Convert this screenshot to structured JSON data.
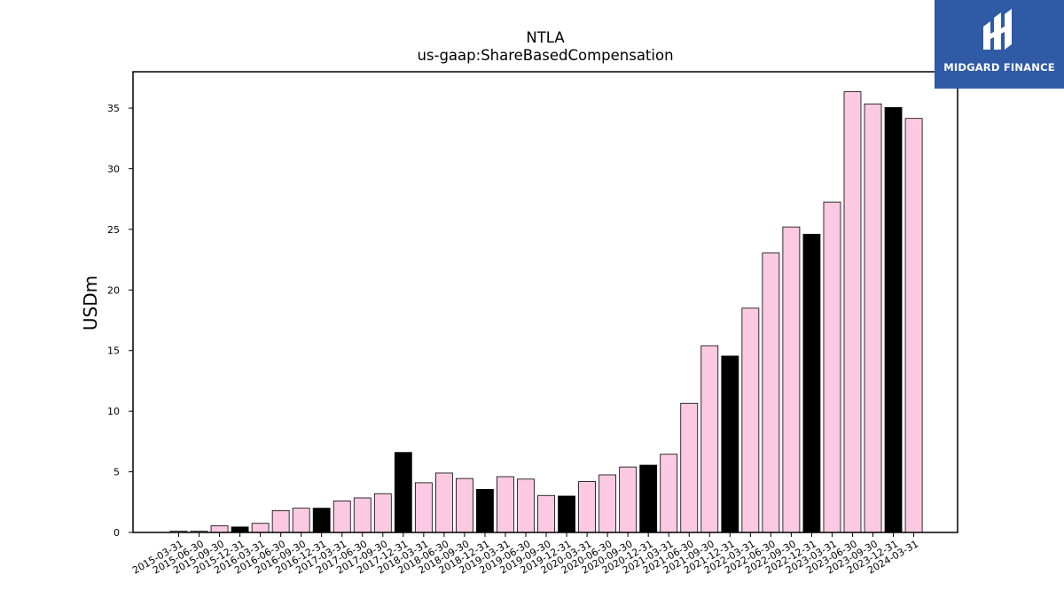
{
  "logo": {
    "text": "MIDGARD FINANCE",
    "background": "#2e5aa6"
  },
  "chart_data": {
    "type": "bar",
    "title": "NTLA",
    "subtitle": "us-gaap:ShareBasedCompensation",
    "ylabel": "USDm",
    "xlabel": "",
    "ylim": [
      0,
      38
    ],
    "yticks": [
      0,
      5,
      10,
      15,
      20,
      25,
      30,
      35
    ],
    "colors": {
      "q4": "#000000",
      "other": "#fbc9e2"
    },
    "categories": [
      "2015-03-31",
      "2015-06-30",
      "2015-09-30",
      "2015-12-31",
      "2016-03-31",
      "2016-06-30",
      "2016-09-30",
      "2016-12-31",
      "2017-03-31",
      "2017-06-30",
      "2017-09-30",
      "2017-12-31",
      "2018-03-31",
      "2018-06-30",
      "2018-09-30",
      "2018-12-31",
      "2019-03-31",
      "2019-06-30",
      "2019-09-30",
      "2019-12-31",
      "2020-03-31",
      "2020-06-30",
      "2020-09-30",
      "2020-12-31",
      "2021-03-31",
      "2021-06-30",
      "2021-09-30",
      "2021-12-31",
      "2022-03-31",
      "2022-06-30",
      "2022-09-30",
      "2022-12-31",
      "2023-03-31",
      "2023-06-30",
      "2023-09-30",
      "2023-12-31",
      "2024-03-31"
    ],
    "values": [
      0.1,
      0.1,
      0.55,
      0.45,
      0.75,
      1.8,
      2.0,
      2.0,
      2.6,
      2.85,
      3.2,
      6.6,
      4.1,
      4.9,
      4.45,
      3.55,
      4.6,
      4.4,
      3.05,
      3.0,
      4.2,
      4.75,
      5.4,
      5.55,
      6.45,
      10.65,
      15.4,
      14.55,
      18.5,
      23.05,
      25.2,
      24.6,
      27.25,
      36.35,
      35.35,
      35.05,
      34.15
    ]
  }
}
